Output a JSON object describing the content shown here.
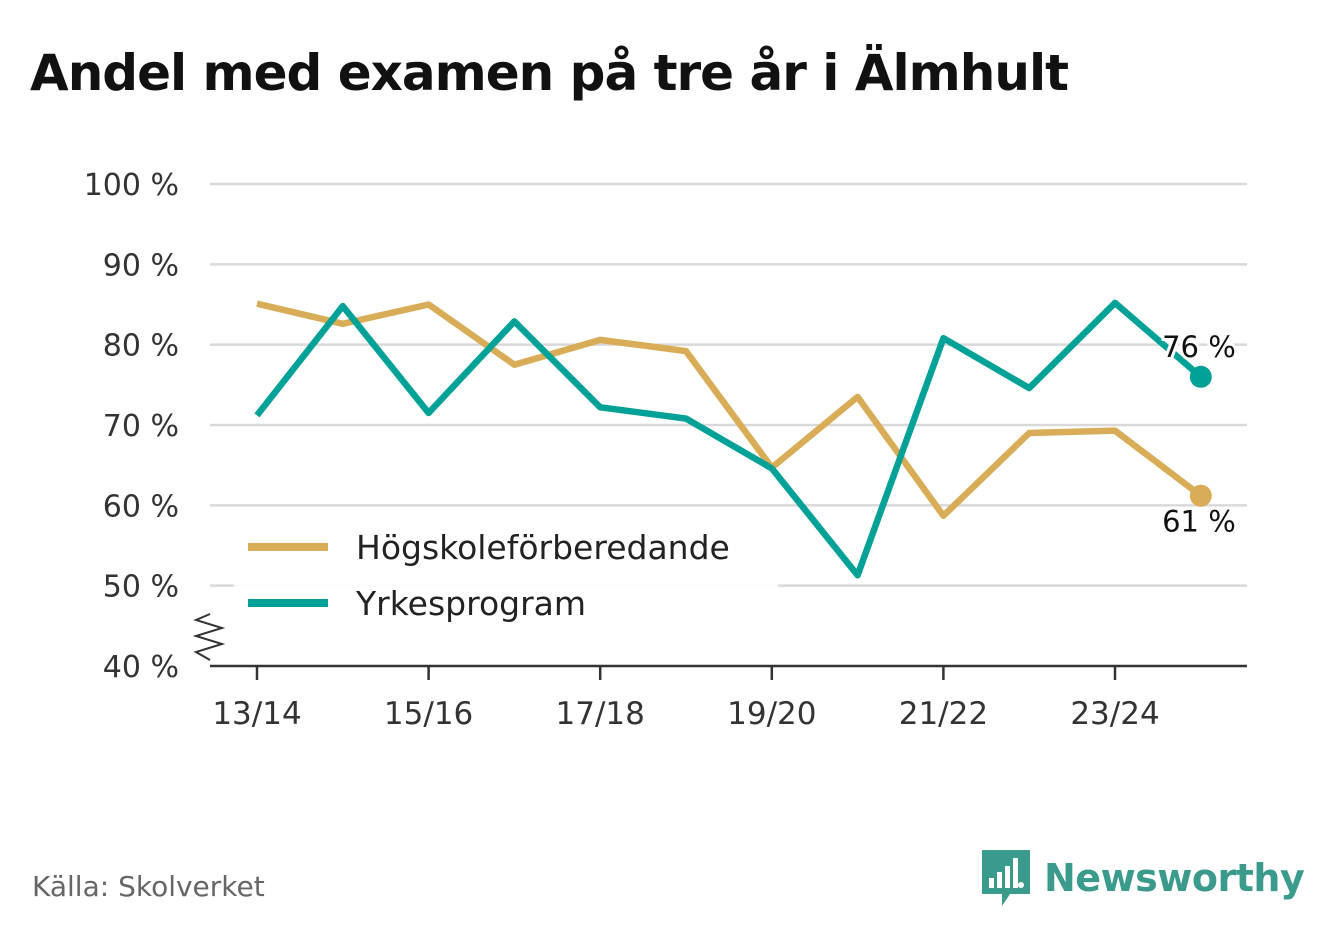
{
  "title": "Andel med examen på tre år i Älmhult",
  "source": "Källa: Skolverket",
  "brand": {
    "name": "Newsworthy",
    "icon": "newsworthy-logo-icon"
  },
  "colors": {
    "hogskole": "#d9ad57",
    "yrkes": "#00a196",
    "grid": "#d9d9d9",
    "axis": "#333333",
    "brand": "#3a9a8c"
  },
  "chart_data": {
    "type": "line",
    "title": "Andel med examen på tre år i Älmhult",
    "x": [
      "13/14",
      "14/15",
      "15/16",
      "16/17",
      "17/18",
      "18/19",
      "19/20",
      "20/21",
      "21/22",
      "22/23",
      "23/24",
      "24/25"
    ],
    "x_tick_labels": [
      "13/14",
      "15/16",
      "17/18",
      "19/20",
      "21/22",
      "23/24"
    ],
    "y_tick_labels": [
      "40 %",
      "50 %",
      "60 %",
      "70 %",
      "80 %",
      "90 %",
      "100 %"
    ],
    "ylim": [
      40,
      100
    ],
    "y_axis_break": true,
    "grid": true,
    "legend_position": "bottom-left",
    "series": [
      {
        "name": "Högskoleförberedande",
        "color": "#d9ad57",
        "values": [
          85.1,
          82.6,
          85.0,
          77.5,
          80.6,
          79.2,
          64.7,
          73.5,
          58.7,
          69.0,
          69.3,
          61.2
        ],
        "end_label": "61 %"
      },
      {
        "name": "Yrkesprogram",
        "color": "#00a196",
        "values": [
          71.2,
          84.8,
          71.5,
          82.9,
          72.2,
          70.8,
          64.6,
          51.3,
          80.8,
          74.6,
          85.2,
          76.0
        ],
        "end_label": "76 %"
      }
    ]
  }
}
